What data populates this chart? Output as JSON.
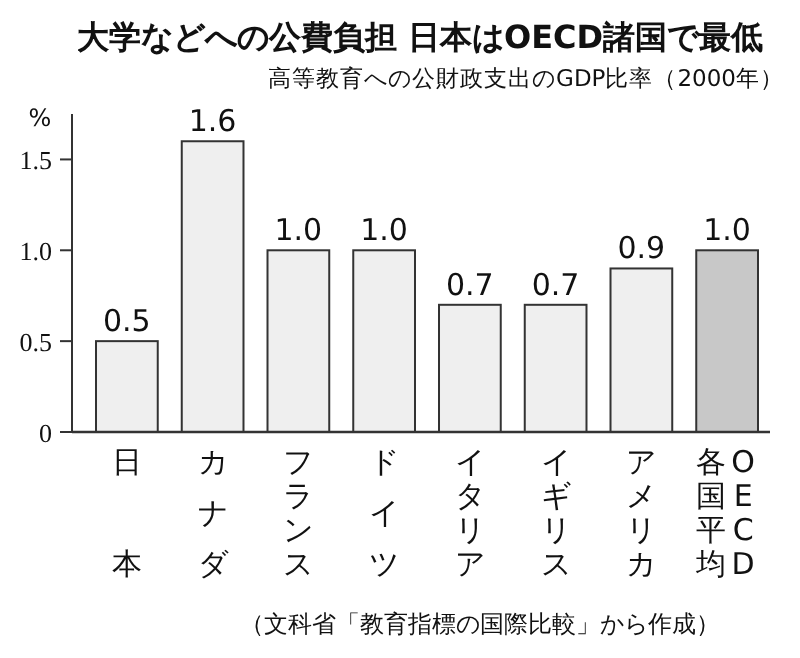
{
  "chart_data": {
    "type": "bar",
    "title": "大学などへの公費負担 日本はOECD諸国で最低",
    "subtitle": "高等教育への公財政支出のGDP比率（2000年）",
    "ylabel": "%",
    "categories": [
      "日本",
      "カナダ",
      "フランス",
      "ドイツ",
      "イタリア",
      "イギリス",
      "アメリカ",
      "OECD各国平均"
    ],
    "values": [
      0.5,
      1.6,
      1.0,
      1.0,
      0.7,
      0.7,
      0.9,
      1.0
    ],
    "colors": [
      "#efefef",
      "#efefef",
      "#efefef",
      "#efefef",
      "#efefef",
      "#efefef",
      "#efefef",
      "#c8c8c8"
    ],
    "value_labels": [
      "0.5",
      "1.6",
      "1.0",
      "1.0",
      "0.7",
      "0.7",
      "0.9",
      "1.0"
    ],
    "ylim": [
      0,
      1.75
    ],
    "yticks": [
      0,
      {
        "value": 0.5,
        "label": "0.5"
      },
      {
        "value": 1.0,
        "label": "1.0"
      },
      {
        "value": 1.5,
        "label": "1.5"
      }
    ],
    "grid": false,
    "annotations": [
      "（文科省「教育指標の国際比較」から作成）"
    ]
  }
}
